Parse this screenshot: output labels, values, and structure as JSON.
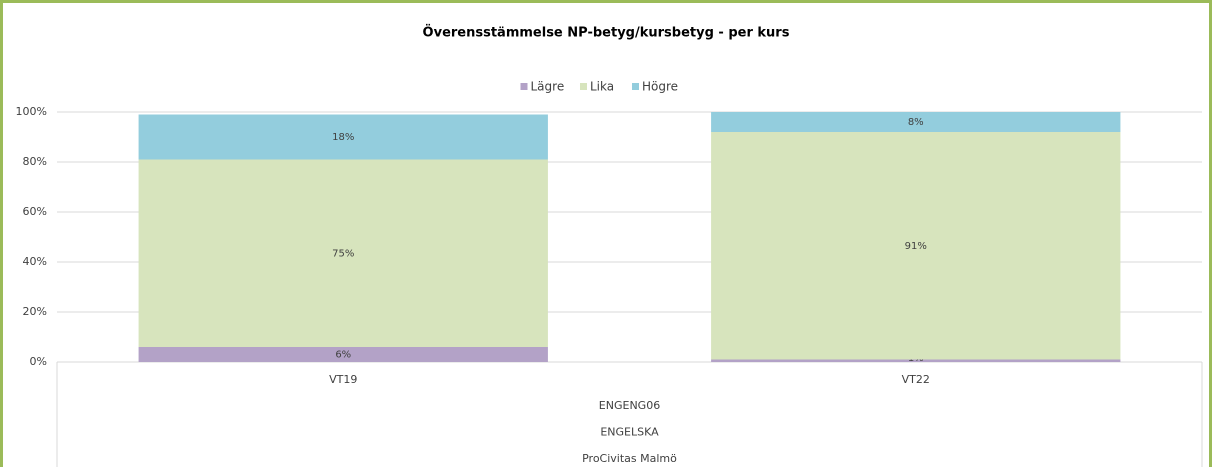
{
  "chart_data": {
    "type": "stacked_bar",
    "title": "Överensstämmelse NP-betyg/kursbetyg - per kurs",
    "categories": [
      "VT19",
      "VT22"
    ],
    "category_groups": [
      "ENGENG06",
      "ENGELSKA",
      "ProCivitas Malmö"
    ],
    "series": [
      {
        "name": "Lägre",
        "color": "#b3a2c7",
        "values": [
          6,
          1
        ],
        "value_labels": [
          "6%",
          "1%"
        ]
      },
      {
        "name": "Lika",
        "color": "#d7e4bd",
        "values": [
          75,
          91
        ],
        "value_labels": [
          "75%",
          "91%"
        ]
      },
      {
        "name": "Högre",
        "color": "#93cddd",
        "values": [
          18,
          8
        ],
        "value_labels": [
          "18%",
          "8%"
        ]
      }
    ],
    "ylim": [
      0,
      100
    ],
    "yticks": [
      {
        "value": 0,
        "label": "0%"
      },
      {
        "value": 20,
        "label": "20%"
      },
      {
        "value": 40,
        "label": "40%"
      },
      {
        "value": 60,
        "label": "60%"
      },
      {
        "value": 80,
        "label": "80%"
      },
      {
        "value": 100,
        "label": "100%"
      }
    ],
    "grid": true,
    "legend": "top"
  }
}
